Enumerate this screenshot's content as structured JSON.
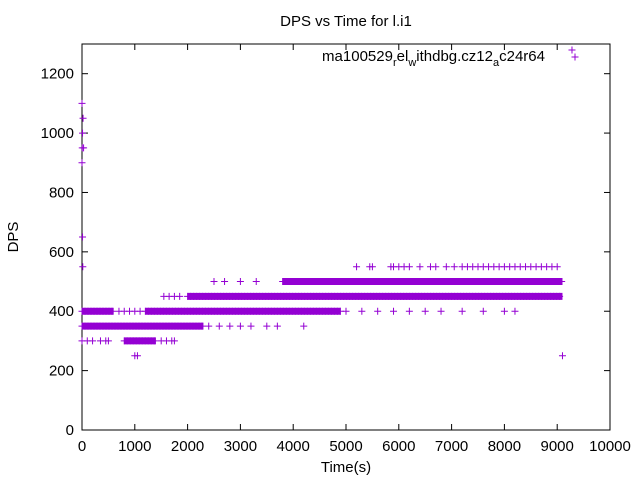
{
  "chart_data": {
    "type": "scatter",
    "title": "DPS vs Time for l.i1",
    "xlabel": "Time(s)",
    "ylabel": "DPS",
    "xlim": [
      0,
      10000
    ],
    "ylim": [
      0,
      1300
    ],
    "xticks": [
      0,
      1000,
      2000,
      3000,
      4000,
      5000,
      6000,
      7000,
      8000,
      9000,
      10000
    ],
    "yticks": [
      0,
      200,
      400,
      600,
      800,
      1000,
      1200
    ],
    "grid": false,
    "legend_position": "top-right",
    "marker": "+",
    "series": [
      {
        "name": "ma100529_rel_withdbg.cz12_ac24r64",
        "color": "#9400d3",
        "bands": [
          {
            "y": 350,
            "x_start": 0,
            "x_end": 2300
          },
          {
            "y": 400,
            "x_start": 0,
            "x_end": 600
          },
          {
            "y": 400,
            "x_start": 1200,
            "x_end": 4900
          },
          {
            "y": 450,
            "x_start": 2000,
            "x_end": 9100
          },
          {
            "y": 500,
            "x_start": 3800,
            "x_end": 9100
          },
          {
            "y": 300,
            "x_start": 800,
            "x_end": 1400
          }
        ],
        "points": [
          [
            0,
            1100
          ],
          [
            20,
            1050
          ],
          [
            10,
            1000
          ],
          [
            5,
            950
          ],
          [
            30,
            950
          ],
          [
            0,
            900
          ],
          [
            10,
            650
          ],
          [
            15,
            550
          ],
          [
            0,
            300
          ],
          [
            100,
            300
          ],
          [
            200,
            300
          ],
          [
            350,
            300
          ],
          [
            450,
            300
          ],
          [
            500,
            300
          ],
          [
            1000,
            250
          ],
          [
            1050,
            250
          ],
          [
            1500,
            300
          ],
          [
            1600,
            300
          ],
          [
            1700,
            300
          ],
          [
            1750,
            300
          ],
          [
            2400,
            350
          ],
          [
            2600,
            350
          ],
          [
            2800,
            350
          ],
          [
            3000,
            350
          ],
          [
            3200,
            350
          ],
          [
            3500,
            350
          ],
          [
            3700,
            350
          ],
          [
            4200,
            350
          ],
          [
            2500,
            500
          ],
          [
            2700,
            500
          ],
          [
            3000,
            500
          ],
          [
            3300,
            500
          ],
          [
            1550,
            450
          ],
          [
            1650,
            450
          ],
          [
            1750,
            450
          ],
          [
            1850,
            450
          ],
          [
            700,
            400
          ],
          [
            800,
            400
          ],
          [
            900,
            400
          ],
          [
            1000,
            400
          ],
          [
            1100,
            400
          ],
          [
            5000,
            400
          ],
          [
            5300,
            400
          ],
          [
            5600,
            400
          ],
          [
            5900,
            400
          ],
          [
            6200,
            400
          ],
          [
            6500,
            400
          ],
          [
            6800,
            400
          ],
          [
            7200,
            400
          ],
          [
            7600,
            400
          ],
          [
            8000,
            400
          ],
          [
            8200,
            400
          ],
          [
            5200,
            550
          ],
          [
            5450,
            550
          ],
          [
            5500,
            550
          ],
          [
            5850,
            550
          ],
          [
            5900,
            550
          ],
          [
            6000,
            550
          ],
          [
            6100,
            550
          ],
          [
            6200,
            550
          ],
          [
            6400,
            550
          ],
          [
            6600,
            550
          ],
          [
            6700,
            550
          ],
          [
            6900,
            550
          ],
          [
            7050,
            550
          ],
          [
            7200,
            550
          ],
          [
            7300,
            550
          ],
          [
            7400,
            550
          ],
          [
            7500,
            550
          ],
          [
            7600,
            550
          ],
          [
            7700,
            550
          ],
          [
            7800,
            550
          ],
          [
            7900,
            550
          ],
          [
            8000,
            550
          ],
          [
            8100,
            550
          ],
          [
            8200,
            550
          ],
          [
            8300,
            550
          ],
          [
            8400,
            550
          ],
          [
            8500,
            550
          ],
          [
            8600,
            550
          ],
          [
            8700,
            550
          ],
          [
            8800,
            550
          ],
          [
            8900,
            550
          ],
          [
            9000,
            550
          ],
          [
            9100,
            250
          ],
          [
            9280,
            1280
          ]
        ]
      }
    ]
  }
}
